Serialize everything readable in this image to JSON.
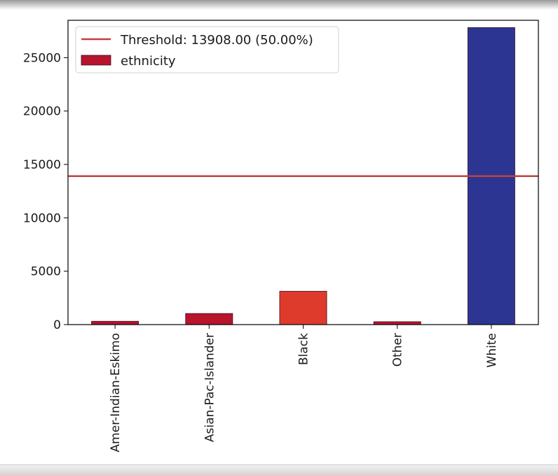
{
  "chart_data": {
    "type": "bar",
    "categories": [
      "Amer-Indian-Eskimo",
      "Asian-Pac-Islander",
      "Black",
      "Other",
      "White"
    ],
    "values": [
      311,
      1039,
      3124,
      271,
      27816
    ],
    "bar_colors": [
      "#b7142e",
      "#b7142e",
      "#de3b2c",
      "#b7142e",
      "#2c3592"
    ],
    "ylim": [
      0,
      28500
    ],
    "yticks": [
      0,
      5000,
      10000,
      15000,
      20000,
      25000
    ],
    "threshold": {
      "value": 13908.0,
      "label": "Threshold: 13908.00 (50.00%)",
      "color": "#c0413b"
    },
    "legend": {
      "placement": "top-left",
      "entries": [
        {
          "type": "line",
          "label": "Threshold: 13908.00 (50.00%)",
          "color": "#c0413b"
        },
        {
          "type": "patch",
          "label": "ethnicity",
          "color": "#b7142e"
        }
      ]
    },
    "grid": false
  }
}
